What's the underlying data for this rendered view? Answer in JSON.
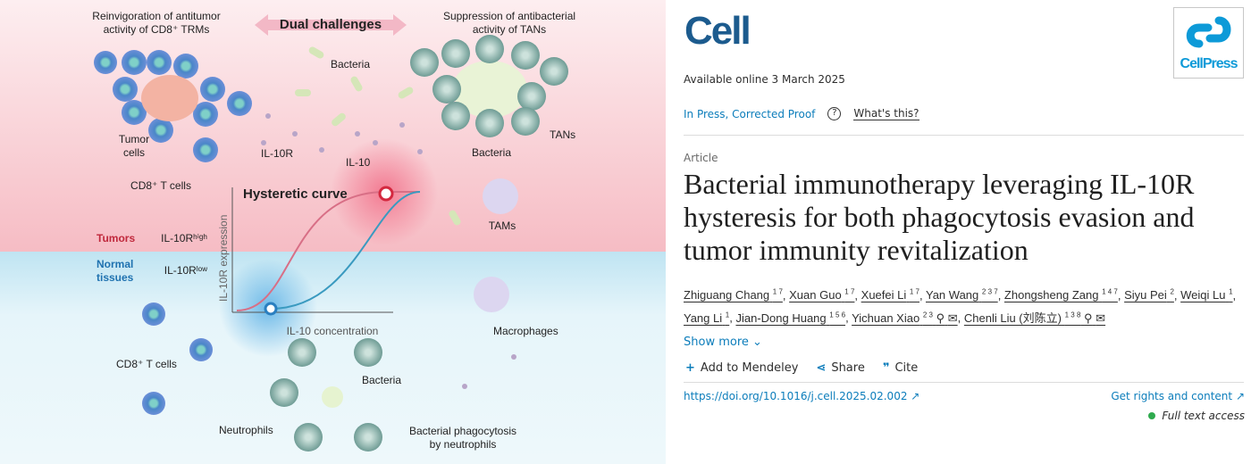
{
  "abstract": {
    "top_left": "Reinvigoration of antitumor",
    "top_left2": "activity of CD8⁺ TRMs",
    "dual": "Dual challenges",
    "top_right": "Suppression of antibacterial",
    "top_right2": "activity of TANs",
    "bacteria": "Bacteria",
    "tumor_cells": "Tumor",
    "tumor_cells2": "cells",
    "il10r": "IL-10R",
    "il10": "IL-10",
    "cd8": "CD8⁺ T cells",
    "bacteria2": "Bacteria",
    "tans": "TANs",
    "tams": "TAMs",
    "hysteretic": "Hysteretic curve",
    "tumors": "Tumors",
    "il10r_high": "IL-10Rʰⁱᵍʰ",
    "normal": "Normal",
    "normal2": "tissues",
    "il10r_low": "IL-10Rˡᵒʷ",
    "yaxis": "IL-10R expression",
    "xaxis": "IL-10 concentration",
    "macrophages": "Macrophages",
    "cd8_2": "CD8⁺ T cells",
    "bacteria3": "Bacteria",
    "neutrophils": "Neutrophils",
    "phago": "Bacterial phagocytosis",
    "phago2": "by neutrophils"
  },
  "journal": {
    "logo": "Cell",
    "publisher": "CellPress",
    "available": "Available online 3 March 2025",
    "status": "In Press, Corrected Proof",
    "whats_this": "What's this?",
    "type": "Article",
    "title": "Bacterial immunotherapy leveraging IL-10R hysteresis for both phagocytosis evasion and tumor immunity revitalization"
  },
  "authors": [
    {
      "name": "Zhiguang Chang",
      "sup": "1 7"
    },
    {
      "name": "Xuan Guo",
      "sup": "1 7"
    },
    {
      "name": "Xuefei Li",
      "sup": "1 7"
    },
    {
      "name": "Yan Wang",
      "sup": "2 3 7"
    },
    {
      "name": "Zhongsheng Zang",
      "sup": "1 4 7"
    },
    {
      "name": "Siyu Pei",
      "sup": "2"
    },
    {
      "name": "Weiqi Lu",
      "sup": "1"
    },
    {
      "name": "Yang Li",
      "sup": "1"
    },
    {
      "name": "Jian-Dong Huang",
      "sup": "1 5 6"
    },
    {
      "name": "Yichuan Xiao",
      "sup": "2 3"
    },
    {
      "name": "Chenli Liu (刘陈立)",
      "sup": "1 3 8"
    }
  ],
  "actions": {
    "show_more": "Show more",
    "mendeley": "Add to Mendeley",
    "share": "Share",
    "cite": "Cite",
    "doi": "https://doi.org/10.1016/j.cell.2025.02.002",
    "rights": "Get rights and content",
    "access": "Full text access"
  },
  "colors": {
    "link": "#0c7dbb",
    "logo": "#1c5b8e",
    "access": "#2eaa4e"
  }
}
